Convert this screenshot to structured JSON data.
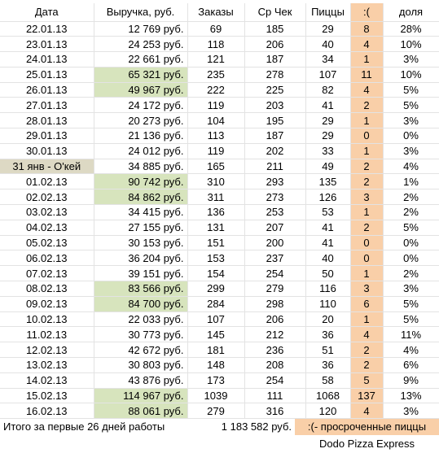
{
  "table": {
    "header": [
      "Дата",
      "Выручка, руб.",
      "Заказы",
      "Ср Чек",
      "Пиццы",
      ":(",
      "доля"
    ],
    "rows": [
      [
        "22.01.13",
        "12 769 руб.",
        69,
        185,
        29,
        8,
        "28%"
      ],
      [
        "23.01.13",
        "24 253 руб.",
        118,
        206,
        40,
        4,
        "10%"
      ],
      [
        "24.01.13",
        "22 661 руб.",
        121,
        187,
        34,
        1,
        "3%"
      ],
      [
        "25.01.13",
        "65 321 руб.",
        235,
        278,
        107,
        11,
        "10%"
      ],
      [
        "26.01.13",
        "49 967 руб.",
        222,
        225,
        82,
        4,
        "5%"
      ],
      [
        "27.01.13",
        "24 172 руб.",
        119,
        203,
        41,
        2,
        "5%"
      ],
      [
        "28.01.13",
        "20 273 руб.",
        104,
        195,
        29,
        1,
        "3%"
      ],
      [
        "29.01.13",
        "21 136 руб.",
        113,
        187,
        29,
        0,
        "0%"
      ],
      [
        "30.01.13",
        "24 012 руб.",
        119,
        202,
        33,
        1,
        "3%"
      ],
      [
        "31 янв - О'кей",
        "34 885 руб.",
        165,
        211,
        49,
        2,
        "4%"
      ],
      [
        "01.02.13",
        "90 742 руб.",
        310,
        293,
        135,
        2,
        "1%"
      ],
      [
        "02.02.13",
        "84 862 руб.",
        311,
        273,
        126,
        3,
        "2%"
      ],
      [
        "03.02.13",
        "34 415 руб.",
        136,
        253,
        53,
        1,
        "2%"
      ],
      [
        "04.02.13",
        "27 155 руб.",
        131,
        207,
        41,
        2,
        "5%"
      ],
      [
        "05.02.13",
        "30 153 руб.",
        151,
        200,
        41,
        0,
        "0%"
      ],
      [
        "06.02.13",
        "36 204 руб.",
        153,
        237,
        40,
        0,
        "0%"
      ],
      [
        "07.02.13",
        "39 151 руб.",
        154,
        254,
        50,
        1,
        "2%"
      ],
      [
        "08.02.13",
        "83 566 руб.",
        299,
        279,
        116,
        3,
        "3%"
      ],
      [
        "09.02.13",
        "84 700 руб.",
        284,
        298,
        110,
        6,
        "5%"
      ],
      [
        "10.02.13",
        "22 033 руб.",
        107,
        206,
        20,
        1,
        "5%"
      ],
      [
        "11.02.13",
        "30 773 руб.",
        145,
        212,
        36,
        4,
        "11%"
      ],
      [
        "12.02.13",
        "42 672 руб.",
        181,
        236,
        51,
        2,
        "4%"
      ],
      [
        "13.02.13",
        "30 803 руб.",
        148,
        208,
        36,
        2,
        "6%"
      ],
      [
        "14.02.13",
        "43 876 руб.",
        173,
        254,
        58,
        5,
        "9%"
      ],
      [
        "15.02.13",
        "114 967 руб.",
        1039,
        111,
        1068,
        137,
        "13%"
      ],
      [
        "16.02.13",
        "88 061 руб.",
        279,
        316,
        120,
        4,
        "3%"
      ]
    ],
    "highlighted_revenue_rows": [
      3,
      4,
      10,
      11,
      17,
      18,
      24,
      25
    ],
    "highlighted_date_rows": [
      9
    ],
    "footer": {
      "label": "Итого за первые 26 дней работы",
      "total": "1 183 582 руб.",
      "note": ":(- просроченные пиццы"
    }
  },
  "caption": "Dodo Pizza Express"
}
